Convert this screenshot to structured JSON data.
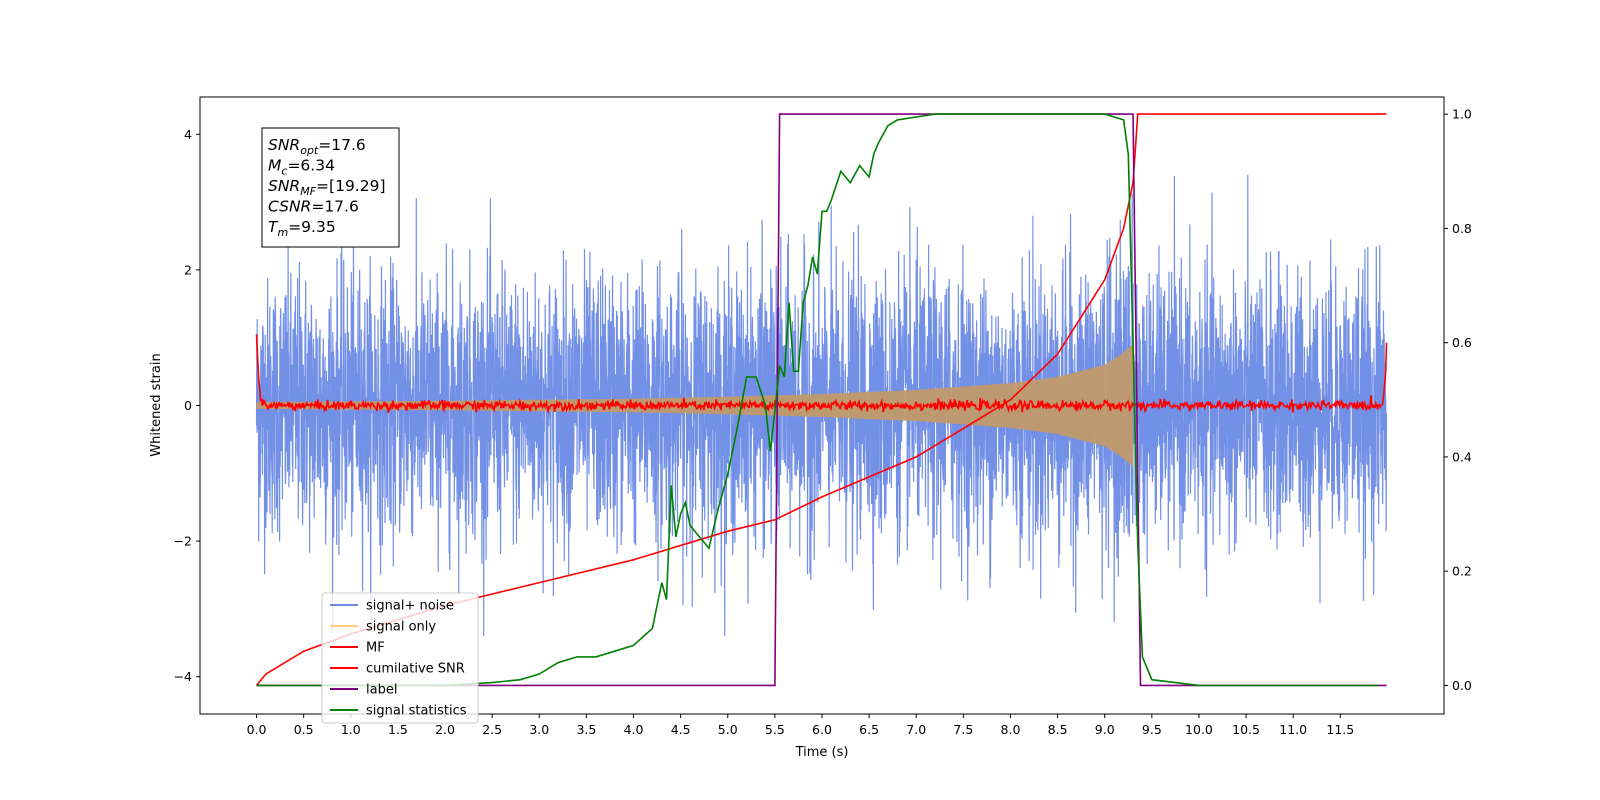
{
  "chart_data": {
    "type": "line",
    "title": "",
    "xlabel": "Time (s)",
    "ylabel": "Whitened strain",
    "xlim": [
      -0.6,
      12.6
    ],
    "ylim": [
      -4.55,
      4.55
    ],
    "y2lim": [
      -0.05,
      1.03
    ],
    "x_ticks": [
      0.0,
      0.5,
      1.0,
      1.5,
      2.0,
      2.5,
      3.0,
      3.5,
      4.0,
      4.5,
      5.0,
      5.5,
      6.0,
      6.5,
      7.0,
      7.5,
      8.0,
      8.5,
      9.0,
      9.5,
      10.0,
      10.5,
      11.0,
      11.5
    ],
    "x_tick_labels": [
      "0.0",
      "0.5",
      "1.0",
      "1.5",
      "2.0",
      "2.5",
      "3.0",
      "3.5",
      "4.0",
      "4.5",
      "5.0",
      "5.5",
      "6.0",
      "6.5",
      "7.0",
      "7.5",
      "8.0",
      "8.5",
      "9.0",
      "9.5",
      "10.0",
      "10.5",
      "11.0",
      "11.5"
    ],
    "y_ticks": [
      -4,
      -2,
      0,
      2,
      4
    ],
    "y_tick_labels": [
      "−4",
      "−2",
      "0",
      "2",
      "4"
    ],
    "y2_ticks": [
      0.0,
      0.2,
      0.4,
      0.6,
      0.8,
      1.0
    ],
    "y2_tick_labels": [
      "0.0",
      "0.2",
      "0.4",
      "0.6",
      "0.8",
      "1.0"
    ],
    "legend_position": "lower-left",
    "grid": false,
    "series": [
      {
        "name": "signal+ noise",
        "color": "#6b8ae6",
        "axis": "left",
        "description_values": {
          "x_range": [
            0.0,
            11.99
          ],
          "typical_amplitude": 1.2,
          "extremes": [
            4.0,
            -4.1
          ]
        }
      },
      {
        "name": "signal only",
        "color": "#ffcc80",
        "axis": "left",
        "x": [
          0.0,
          2.0,
          4.0,
          5.0,
          6.0,
          7.0,
          8.0,
          8.5,
          9.0,
          9.2,
          9.33
        ],
        "envelope": [
          0.05,
          0.07,
          0.1,
          0.13,
          0.17,
          0.23,
          0.33,
          0.42,
          0.6,
          0.78,
          0.95
        ]
      },
      {
        "name": "MF",
        "color": "#ff0000",
        "axis": "left",
        "x": [
          0.0,
          0.02,
          0.05,
          0.1,
          11.9,
          11.95,
          11.98,
          11.99
        ],
        "values": [
          1.0,
          0.4,
          0.05,
          0.0,
          0.0,
          0.05,
          0.4,
          0.95
        ]
      },
      {
        "name": "cumilative SNR",
        "color": "#ff0000",
        "axis": "right",
        "x": [
          0.0,
          0.1,
          0.5,
          1.0,
          2.0,
          3.0,
          4.0,
          5.0,
          5.5,
          6.0,
          7.0,
          7.5,
          8.0,
          8.5,
          9.0,
          9.2,
          9.3,
          9.33,
          9.35,
          11.99
        ],
        "values": [
          0.0,
          0.02,
          0.06,
          0.09,
          0.14,
          0.18,
          0.22,
          0.27,
          0.29,
          0.33,
          0.4,
          0.45,
          0.5,
          0.58,
          0.71,
          0.8,
          0.88,
          0.95,
          1.0,
          1.0
        ]
      },
      {
        "name": "label",
        "color": "#800080",
        "axis": "right",
        "x": [
          0.0,
          5.5,
          5.55,
          9.3,
          9.38,
          11.99
        ],
        "values": [
          0.0,
          0.0,
          1.0,
          1.0,
          0.0,
          0.0
        ]
      },
      {
        "name": "signal statistics",
        "color": "#008000",
        "axis": "right",
        "x": [
          0.0,
          0.5,
          1.0,
          1.5,
          2.0,
          2.5,
          2.8,
          3.0,
          3.2,
          3.4,
          3.6,
          3.8,
          4.0,
          4.2,
          4.3,
          4.35,
          4.4,
          4.45,
          4.5,
          4.55,
          4.6,
          4.7,
          4.8,
          4.9,
          5.0,
          5.1,
          5.2,
          5.3,
          5.4,
          5.45,
          5.5,
          5.55,
          5.6,
          5.65,
          5.7,
          5.75,
          5.8,
          5.85,
          5.9,
          5.95,
          6.0,
          6.05,
          6.1,
          6.2,
          6.3,
          6.4,
          6.5,
          6.55,
          6.6,
          6.7,
          6.8,
          7.0,
          7.2,
          7.5,
          8.0,
          8.5,
          9.0,
          9.2,
          9.25,
          9.3,
          9.35,
          9.4,
          9.5,
          10.0,
          11.0,
          11.9
        ],
        "values": [
          0.0,
          0.0,
          0.0,
          0.0,
          0.0,
          0.005,
          0.01,
          0.02,
          0.04,
          0.05,
          0.05,
          0.06,
          0.07,
          0.1,
          0.18,
          0.15,
          0.35,
          0.26,
          0.3,
          0.32,
          0.28,
          0.26,
          0.24,
          0.31,
          0.37,
          0.45,
          0.54,
          0.54,
          0.49,
          0.41,
          0.48,
          0.56,
          0.54,
          0.67,
          0.55,
          0.55,
          0.67,
          0.7,
          0.75,
          0.72,
          0.83,
          0.83,
          0.85,
          0.9,
          0.88,
          0.91,
          0.89,
          0.93,
          0.95,
          0.98,
          0.99,
          0.995,
          1.0,
          1.0,
          1.0,
          1.0,
          1.0,
          0.99,
          0.93,
          0.6,
          0.25,
          0.05,
          0.01,
          0.0,
          0.0,
          0.0
        ]
      }
    ],
    "annotation": {
      "lines": [
        "SNR_opt=17.6",
        "M_c=6.34",
        "SNR_MF=[19.29]",
        "CSNR=17.6",
        "T_m=9.35"
      ],
      "rich": [
        {
          "main": "SNR",
          "sub": "opt",
          "rest": "=17.6"
        },
        {
          "main": "M",
          "sub": "c",
          "rest": "=6.34"
        },
        {
          "main": "SNR",
          "sub": "MF",
          "rest": "=[19.29]"
        },
        {
          "main": "CSNR",
          "sub": "",
          "rest": "=17.6"
        },
        {
          "main": "T",
          "sub": "m",
          "rest": "=9.35"
        }
      ]
    }
  }
}
